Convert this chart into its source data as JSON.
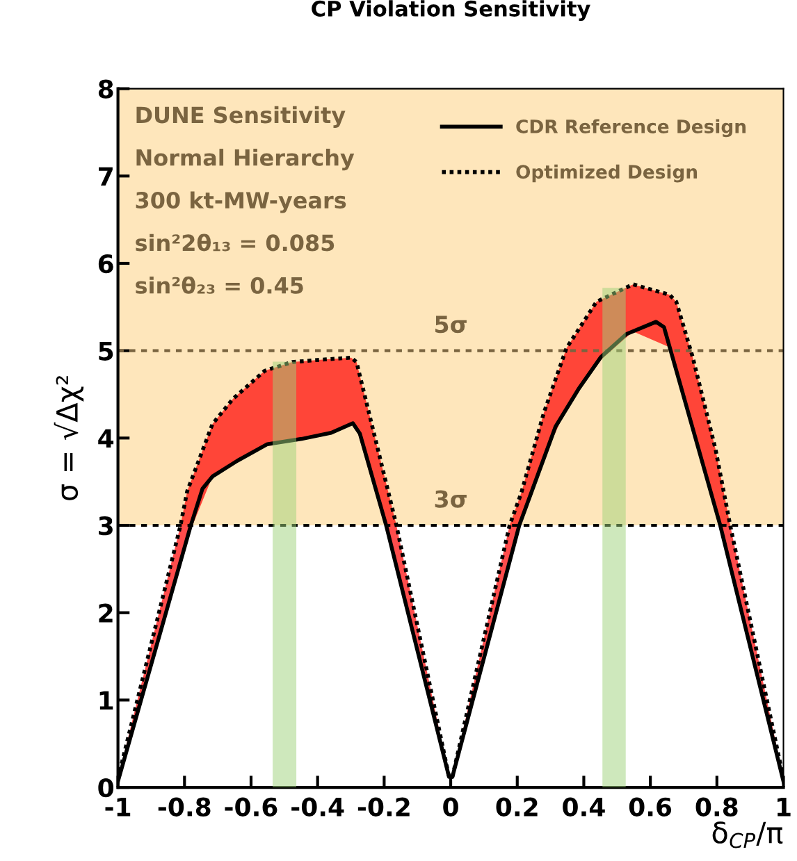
{
  "chart_data": {
    "type": "line",
    "title": "CP Violation Sensitivity",
    "xlabel": "δ$_{CP}$/π",
    "ylabel": "σ = √Δχ²",
    "xlim": [
      -1,
      1
    ],
    "ylim": [
      0,
      8
    ],
    "xticks": [
      {
        "value": -1,
        "label": "-1"
      },
      {
        "value": -0.8,
        "label": "-0.8"
      },
      {
        "value": -0.6,
        "label": "-0.6"
      },
      {
        "value": -0.4,
        "label": "-0.4"
      },
      {
        "value": -0.2,
        "label": "-0.2"
      },
      0,
      0.2,
      0.4,
      0.6,
      0.8,
      1
    ],
    "yticks": [
      0,
      1,
      2,
      3,
      4,
      5,
      6,
      7,
      8
    ],
    "series": [
      {
        "name": "CDR Reference Design",
        "color": "#000000",
        "line_style": "solid",
        "x": [
          -1,
          -0.781,
          -0.746,
          -0.716,
          -0.641,
          -0.551,
          -0.448,
          -0.359,
          -0.294,
          -0.273,
          -0.194,
          -0.005,
          0.005,
          0.206,
          0.315,
          0.384,
          0.452,
          0.528,
          0.617,
          0.641,
          0.81,
          1
        ],
        "values": [
          0.07,
          3,
          3.42,
          3.56,
          3.74,
          3.93,
          3.99,
          4.06,
          4.17,
          4.05,
          3,
          0.12,
          0.12,
          3,
          4.13,
          4.56,
          4.93,
          5.19,
          5.33,
          5.27,
          3,
          0.07
        ]
      },
      {
        "name": "Optimized Design",
        "color": "#000000",
        "line_style": "dotted",
        "x": [
          -1,
          -0.812,
          -0.792,
          -0.716,
          -0.654,
          -0.559,
          -0.476,
          -0.379,
          -0.299,
          -0.283,
          -0.163,
          -0.005,
          0.005,
          0.177,
          0.212,
          0.28,
          0.348,
          0.438,
          0.548,
          0.658,
          0.678,
          0.727,
          0.796,
          0.84,
          1
        ],
        "values": [
          0.1,
          3,
          3.39,
          4.16,
          4.45,
          4.77,
          4.87,
          4.9,
          4.92,
          4.87,
          3,
          0.12,
          0.12,
          3,
          3.37,
          4.29,
          5.03,
          5.56,
          5.76,
          5.64,
          5.56,
          4.93,
          3.87,
          3,
          0.1
        ],
        "lower": [
          0.07,
          2.58,
          2.85,
          3.56,
          3.71,
          3.91,
          3.97,
          4.04,
          4.16,
          4.11,
          2.53,
          0.12,
          0.12,
          2.58,
          3.06,
          3.77,
          4.34,
          4.85,
          5.22,
          5.04,
          4.77,
          4.12,
          3.19,
          2.54,
          0.07
        ],
        "upper": [
          0.1,
          3,
          3.39,
          4.16,
          4.45,
          4.77,
          4.87,
          4.9,
          4.92,
          4.87,
          3,
          0.12,
          0.12,
          3,
          3.37,
          4.29,
          5.03,
          5.56,
          5.76,
          5.64,
          5.56,
          4.93,
          3.87,
          3,
          0.1
        ]
      }
    ],
    "bands": [
      {
        "axis": "y",
        "from": 3,
        "to": 8,
        "color": "#fee6bb"
      },
      {
        "axis": "x",
        "from": -0.535,
        "to": -0.464,
        "color": "#9ed27a"
      },
      {
        "axis": "x",
        "from": 0.456,
        "to": 0.526,
        "color": "#9ed27a"
      }
    ],
    "ref_lines": [
      {
        "axis": "y",
        "value": 3,
        "label": "3σ",
        "color": "#000000",
        "line_style": "dashed"
      },
      {
        "axis": "y",
        "value": 5,
        "label": "5σ",
        "color": "#7a6440",
        "line_style": "dashed"
      }
    ],
    "annotations": [
      "DUNE Sensitivity",
      "Normal Hierarchy",
      "300 kt-MW-years",
      "sin²2θ₁₃ = 0.085",
      "sin²θ₂₃ = 0.45"
    ],
    "legend": "top right",
    "grid": false
  }
}
